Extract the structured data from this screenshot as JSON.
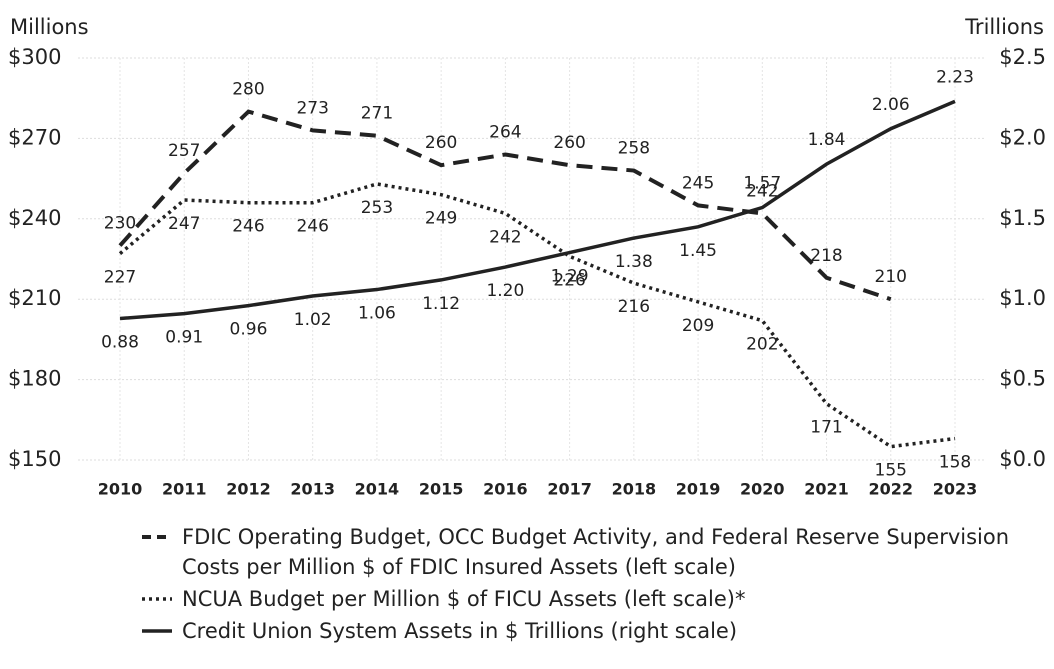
{
  "chart_data": {
    "type": "line",
    "y_label": "Millions",
    "y2_label": "Trillions",
    "categories": [
      "2010",
      "2011",
      "2012",
      "2013",
      "2014",
      "2015",
      "2016",
      "2017",
      "2018",
      "2019",
      "2020",
      "2021",
      "2022",
      "2023"
    ],
    "ylim": [
      150,
      300
    ],
    "yticks": [
      {
        "value": 150,
        "label": "$150"
      },
      {
        "value": 180,
        "label": "$180"
      },
      {
        "value": 210,
        "label": "$210"
      },
      {
        "value": 240,
        "label": "$240"
      },
      {
        "value": 270,
        "label": "$270"
      },
      {
        "value": 300,
        "label": "$300"
      }
    ],
    "y2lim": [
      0,
      2.5
    ],
    "y2ticks": [
      {
        "value": 0,
        "label": "$0.0"
      },
      {
        "value": 0.5,
        "label": "$0.5"
      },
      {
        "value": 1,
        "label": "$1.0"
      },
      {
        "value": 1.5,
        "label": "$1.5"
      },
      {
        "value": 2,
        "label": "$2.0"
      },
      {
        "value": 2.5,
        "label": "$2.5"
      }
    ],
    "grid": true,
    "series": [
      {
        "name": "FDIC Operating Budget, OCC Budget Activity, and Federal Reserve Supervision Costs per Million $ of FDIC Insured Assets (left scale)",
        "color": "#222222",
        "dash": "dashed",
        "values": [
          230,
          257,
          280,
          273,
          271,
          260,
          264,
          260,
          258,
          245,
          242,
          218,
          210,
          null
        ]
      },
      {
        "name": "NCUA Budget per Million $ of FICU Assets (left scale)*",
        "color": "#222222",
        "dash": "dotted",
        "values": [
          227,
          247,
          246,
          246,
          253,
          249,
          242,
          226,
          216,
          209,
          202,
          171,
          155,
          158
        ]
      },
      {
        "name": "Credit Union System Assets in $ Trillions (right scale)",
        "color": "#222222",
        "dash": "solid",
        "axis": "y2",
        "values": [
          0.88,
          0.91,
          0.96,
          1.02,
          1.06,
          1.12,
          1.2,
          1.29,
          1.38,
          1.45,
          1.57,
          1.84,
          2.06,
          2.23
        ],
        "value_labels": [
          "0.88",
          "0.91",
          "0.96",
          "1.02",
          "1.06",
          "1.12",
          "1.20",
          "1.29",
          "1.38",
          "1.45",
          "1.57",
          "1.84",
          "2.06",
          "2.23"
        ]
      }
    ]
  }
}
